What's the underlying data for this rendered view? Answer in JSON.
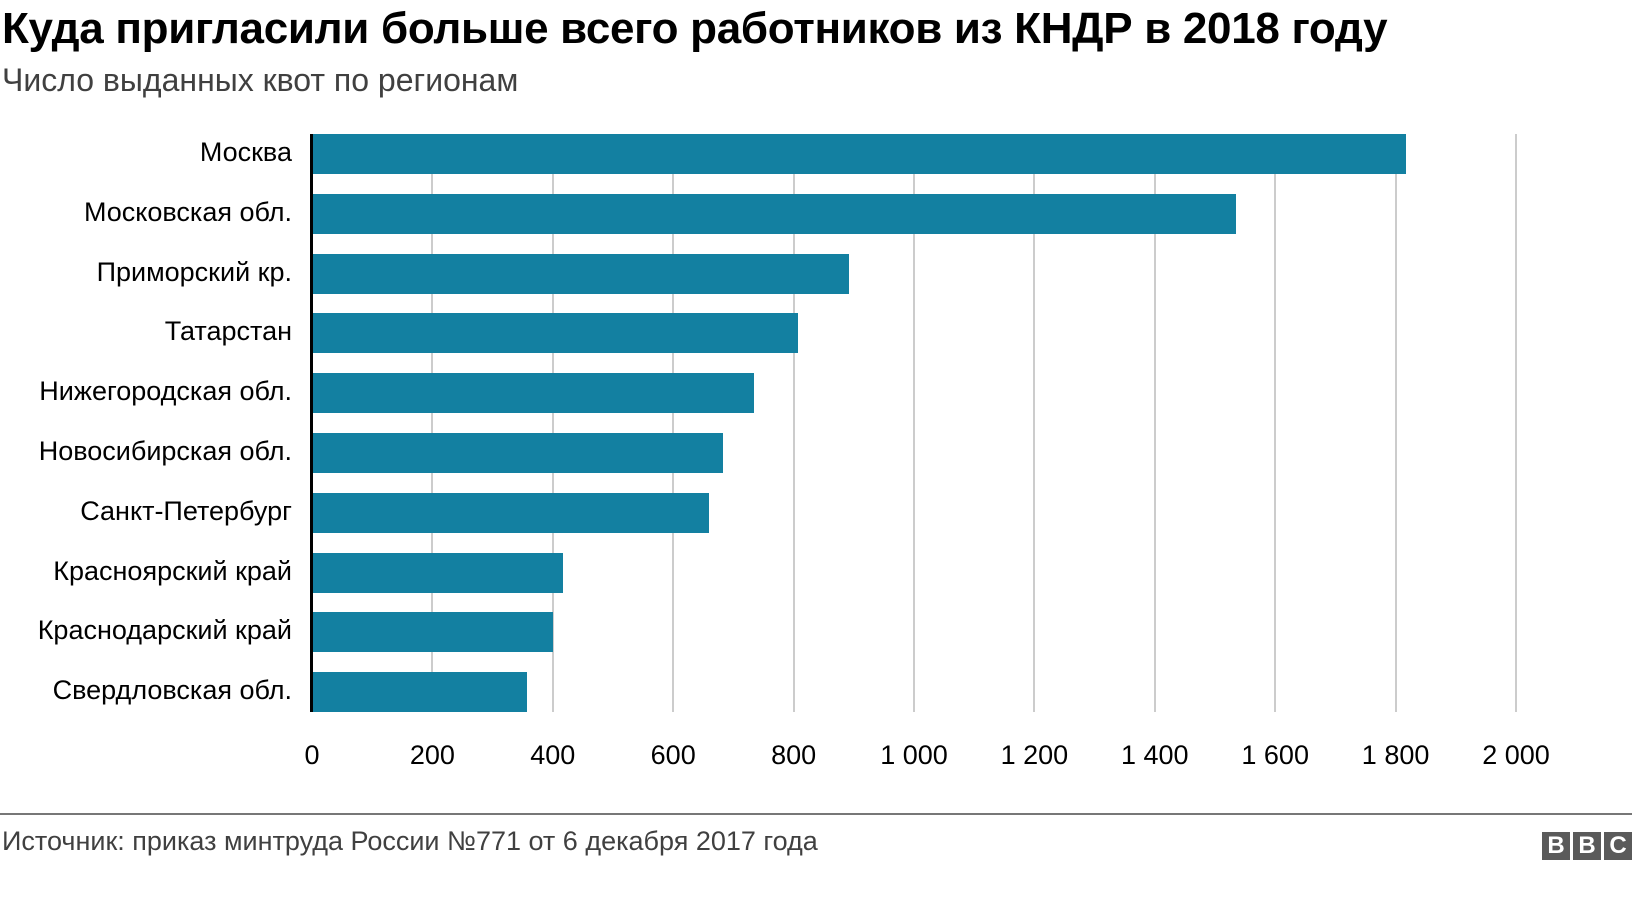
{
  "header": {
    "title": "Куда пригласили больше всего работников из КНДР в 2018 году",
    "subtitle": "Число выданных квот по регионам"
  },
  "footer": {
    "source": "Источник: приказ минтруда России №771 от 6 декабря 2017 года",
    "logo": [
      "B",
      "B",
      "C"
    ]
  },
  "colors": {
    "bar": "#1380a1",
    "grid": "#cccccc",
    "axis": "#000000"
  },
  "chart_data": {
    "type": "bar",
    "orientation": "horizontal",
    "title": "Куда пригласили больше всего работников из КНДР в 2018 году",
    "subtitle": "Число выданных квот по регионам",
    "xlabel": "",
    "ylabel": "",
    "categories": [
      "Москва",
      "Московская обл.",
      "Приморский кр.",
      "Татарстан",
      "Нижегородская обл.",
      "Новосибирская обл.",
      "Санкт-Петербург",
      "Красноярский край",
      "Краснодарский край",
      "Свердловская обл."
    ],
    "values": [
      1817,
      1535,
      892,
      807,
      734,
      683,
      660,
      417,
      400,
      357
    ],
    "xlim": [
      0,
      2000
    ],
    "ticks": [
      "0",
      "200",
      "400",
      "600",
      "800",
      "1 000",
      "1 200",
      "1 400",
      "1 600",
      "1 800",
      "2 000"
    ],
    "tick_values": [
      0,
      200,
      400,
      600,
      800,
      1000,
      1200,
      1400,
      1600,
      1800,
      2000
    ],
    "grid": true,
    "legend": null
  }
}
